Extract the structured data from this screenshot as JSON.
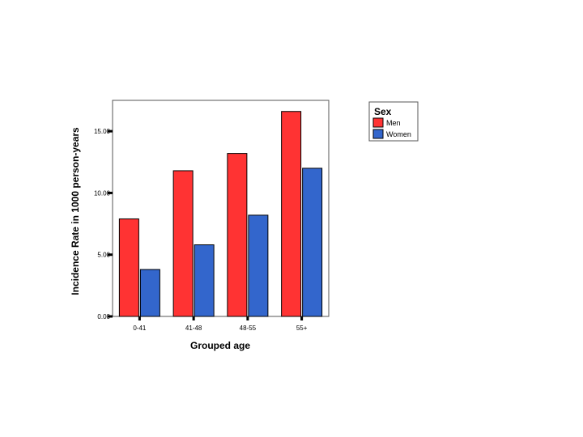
{
  "chart_data": {
    "type": "bar",
    "xlabel": "Grouped age",
    "ylabel": "Incidence Rate in 1000 person-years",
    "categories": [
      "0-41",
      "41-48",
      "48-55",
      "55+"
    ],
    "series": [
      {
        "name": "Men",
        "values": [
          7.9,
          11.8,
          13.2,
          16.6
        ],
        "color": "#ff3333"
      },
      {
        "name": "Women",
        "values": [
          3.8,
          5.8,
          8.2,
          12.0
        ],
        "color": "#3366cc"
      }
    ],
    "ylim": [
      0,
      17.5
    ],
    "yticks": [
      0,
      5,
      10,
      15
    ],
    "ytick_labels": [
      "0.00",
      "5.00",
      "10.00",
      "15.00"
    ],
    "grid": false,
    "legend": {
      "title": "Sex",
      "position": "right"
    }
  }
}
